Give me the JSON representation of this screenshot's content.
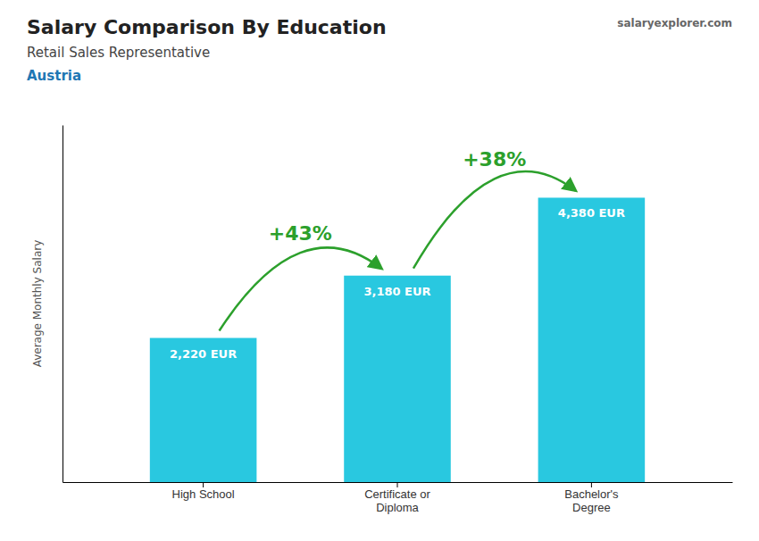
{
  "chart_data": {
    "type": "bar",
    "title": "Salary Comparison By Education",
    "subtitle": "Retail Sales Representative",
    "ylabel": "Average Monthly Salary",
    "categories": [
      "High School",
      "Certificate or\nDiploma",
      "Bachelor's\nDegree"
    ],
    "values": [
      2220,
      3180,
      4380
    ],
    "value_labels": [
      "2,220 EUR",
      "3,180 EUR",
      "4,380 EUR"
    ],
    "data_labels": true,
    "annotations": [
      "Austria",
      "salaryexplorer.com",
      "+43%",
      "+38%"
    ],
    "color": "#29c8e0",
    "ylim": [
      0,
      5500
    ],
    "tick_labels": "x",
    "grid": false
  }
}
